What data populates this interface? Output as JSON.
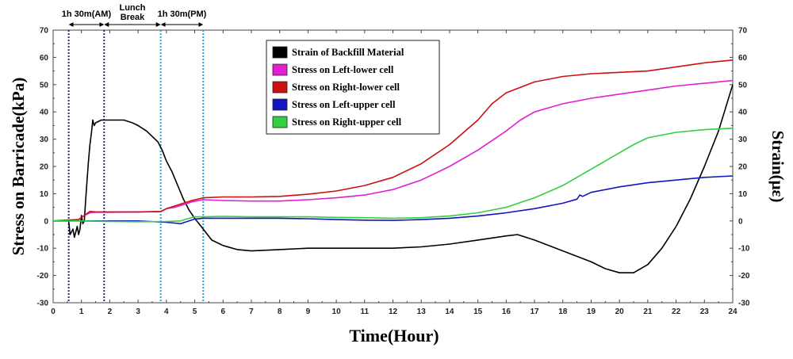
{
  "chart_data": {
    "type": "line",
    "xlabel": "Time(Hour)",
    "ylabel": "Stress on Barricade(kPa)",
    "y2label": "Strain(με)",
    "xlim": [
      0,
      24
    ],
    "ylim": [
      -30,
      70
    ],
    "y2lim": [
      -30,
      70
    ],
    "xticks": [
      0,
      1,
      2,
      3,
      4,
      5,
      6,
      7,
      8,
      9,
      10,
      11,
      12,
      13,
      14,
      15,
      16,
      17,
      18,
      19,
      20,
      21,
      22,
      23,
      24
    ],
    "yticks": [
      -30,
      -20,
      -10,
      0,
      10,
      20,
      30,
      40,
      50,
      60,
      70
    ],
    "y2ticks": [
      -30,
      -20,
      -10,
      0,
      10,
      20,
      30,
      40,
      50,
      60,
      70
    ],
    "grid": false,
    "legend": "top-center",
    "annotations": [
      {
        "label": "1h 30m(AM)",
        "from": 0.55,
        "to": 1.8
      },
      {
        "label_line1": "Lunch",
        "label_line2": "Break",
        "from": 1.8,
        "to": 3.8
      },
      {
        "label": "1h 30m(PM)",
        "from": 3.8,
        "to": 5.3
      }
    ],
    "vlines": [
      {
        "x": 0.55,
        "color": "#1f2f7a"
      },
      {
        "x": 1.8,
        "color": "#1f2f7a"
      },
      {
        "x": 3.8,
        "color": "#2ba3d6"
      },
      {
        "x": 5.3,
        "color": "#2ba3d6"
      }
    ],
    "series": [
      {
        "name": "Strain of Backfill Material",
        "color": "#000000",
        "axis": "right",
        "points": [
          [
            0,
            0
          ],
          [
            0.55,
            0
          ],
          [
            0.6,
            -5
          ],
          [
            0.7,
            -3
          ],
          [
            0.75,
            -6
          ],
          [
            0.8,
            -4
          ],
          [
            0.85,
            -2
          ],
          [
            0.9,
            -5
          ],
          [
            0.95,
            -3
          ],
          [
            1.0,
            2
          ],
          [
            1.05,
            -1
          ],
          [
            1.1,
            0
          ],
          [
            1.15,
            8
          ],
          [
            1.2,
            15
          ],
          [
            1.25,
            22
          ],
          [
            1.3,
            28
          ],
          [
            1.35,
            32
          ],
          [
            1.4,
            37
          ],
          [
            1.45,
            35
          ],
          [
            1.5,
            36
          ],
          [
            1.7,
            37
          ],
          [
            2.0,
            37
          ],
          [
            2.5,
            37
          ],
          [
            2.8,
            36
          ],
          [
            3.0,
            35
          ],
          [
            3.3,
            33
          ],
          [
            3.5,
            31
          ],
          [
            3.7,
            29
          ],
          [
            3.85,
            26
          ],
          [
            4.0,
            22
          ],
          [
            4.2,
            18
          ],
          [
            4.4,
            13
          ],
          [
            4.6,
            8
          ],
          [
            4.8,
            4
          ],
          [
            5.0,
            1
          ],
          [
            5.3,
            -3
          ],
          [
            5.6,
            -7
          ],
          [
            6.0,
            -9
          ],
          [
            6.5,
            -10.5
          ],
          [
            7.0,
            -11
          ],
          [
            8.0,
            -10.5
          ],
          [
            9.0,
            -10
          ],
          [
            10.0,
            -10
          ],
          [
            11.0,
            -10
          ],
          [
            12.0,
            -10
          ],
          [
            13.0,
            -9.5
          ],
          [
            14.0,
            -8.5
          ],
          [
            15.0,
            -7
          ],
          [
            16.0,
            -5.5
          ],
          [
            16.4,
            -5
          ],
          [
            17.0,
            -7
          ],
          [
            18.0,
            -11
          ],
          [
            19.0,
            -15
          ],
          [
            19.5,
            -17.5
          ],
          [
            20.0,
            -19
          ],
          [
            20.5,
            -19
          ],
          [
            21.0,
            -16
          ],
          [
            21.5,
            -10
          ],
          [
            22.0,
            -2
          ],
          [
            22.5,
            8
          ],
          [
            23.0,
            20
          ],
          [
            23.5,
            33
          ],
          [
            24.0,
            50
          ]
        ]
      },
      {
        "name": "Stress on Left-lower cell",
        "color": "#e020d0",
        "axis": "left",
        "points": [
          [
            0,
            0
          ],
          [
            0.9,
            0.5
          ],
          [
            1.1,
            2
          ],
          [
            1.3,
            3
          ],
          [
            1.5,
            3.2
          ],
          [
            2.0,
            3.2
          ],
          [
            3.0,
            3.3
          ],
          [
            3.8,
            3.4
          ],
          [
            4.0,
            4.5
          ],
          [
            4.3,
            5
          ],
          [
            4.6,
            6
          ],
          [
            4.9,
            7
          ],
          [
            5.3,
            7.8
          ],
          [
            6.0,
            7.5
          ],
          [
            7.0,
            7.3
          ],
          [
            8.0,
            7.3
          ],
          [
            9.0,
            7.8
          ],
          [
            10.0,
            8.5
          ],
          [
            11.0,
            9.5
          ],
          [
            12.0,
            11.5
          ],
          [
            13.0,
            15
          ],
          [
            14.0,
            20
          ],
          [
            15.0,
            26
          ],
          [
            16.0,
            33
          ],
          [
            16.5,
            37
          ],
          [
            17.0,
            40
          ],
          [
            18.0,
            43
          ],
          [
            19.0,
            45
          ],
          [
            20.0,
            46.5
          ],
          [
            21.0,
            48
          ],
          [
            22.0,
            49.5
          ],
          [
            23.0,
            50.5
          ],
          [
            24.0,
            51.5
          ]
        ]
      },
      {
        "name": "Stress on Right-lower cell",
        "color": "#cc1010",
        "axis": "left",
        "points": [
          [
            0,
            0
          ],
          [
            0.9,
            0.5
          ],
          [
            1.1,
            2
          ],
          [
            1.3,
            3.5
          ],
          [
            1.5,
            3.3
          ],
          [
            2.0,
            3.3
          ],
          [
            3.0,
            3.3
          ],
          [
            3.8,
            3.5
          ],
          [
            4.0,
            4.5
          ],
          [
            4.3,
            5.5
          ],
          [
            4.6,
            6.5
          ],
          [
            4.9,
            7.5
          ],
          [
            5.3,
            8.5
          ],
          [
            6.0,
            8.8
          ],
          [
            7.0,
            8.8
          ],
          [
            8.0,
            9
          ],
          [
            9.0,
            9.8
          ],
          [
            10.0,
            11
          ],
          [
            11.0,
            13
          ],
          [
            12.0,
            16
          ],
          [
            13.0,
            21
          ],
          [
            14.0,
            28
          ],
          [
            15.0,
            37
          ],
          [
            15.5,
            43
          ],
          [
            16.0,
            47
          ],
          [
            17.0,
            51
          ],
          [
            18.0,
            53
          ],
          [
            19.0,
            54
          ],
          [
            20.0,
            54.5
          ],
          [
            21.0,
            55
          ],
          [
            22.0,
            56.5
          ],
          [
            23.0,
            58
          ],
          [
            24.0,
            59
          ]
        ]
      },
      {
        "name": "Stress on Left-upper cell",
        "color": "#1515c0",
        "axis": "left",
        "points": [
          [
            0,
            0
          ],
          [
            1.0,
            0
          ],
          [
            2.0,
            0
          ],
          [
            3.0,
            0
          ],
          [
            4.0,
            -0.5
          ],
          [
            4.5,
            -1
          ],
          [
            4.8,
            0
          ],
          [
            5.0,
            0.7
          ],
          [
            5.3,
            1
          ],
          [
            6.0,
            1
          ],
          [
            7.0,
            1
          ],
          [
            8.0,
            1
          ],
          [
            9.0,
            0.8
          ],
          [
            10.0,
            0.5
          ],
          [
            11.0,
            0.3
          ],
          [
            12.0,
            0.2
          ],
          [
            13.0,
            0.5
          ],
          [
            14.0,
            1
          ],
          [
            15.0,
            1.8
          ],
          [
            16.0,
            3
          ],
          [
            17.0,
            4.5
          ],
          [
            18.0,
            6.5
          ],
          [
            18.5,
            8
          ],
          [
            18.6,
            9.5
          ],
          [
            18.7,
            9
          ],
          [
            19.0,
            10.5
          ],
          [
            20.0,
            12.5
          ],
          [
            21.0,
            14
          ],
          [
            22.0,
            15
          ],
          [
            23.0,
            16
          ],
          [
            24.0,
            16.5
          ]
        ]
      },
      {
        "name": "Stress on Right-upper cell",
        "color": "#30d040",
        "axis": "left",
        "points": [
          [
            0,
            0
          ],
          [
            1.0,
            0
          ],
          [
            2.0,
            -0.2
          ],
          [
            3.0,
            -0.3
          ],
          [
            4.0,
            -0.2
          ],
          [
            4.5,
            0
          ],
          [
            4.8,
            1
          ],
          [
            5.0,
            1.5
          ],
          [
            5.3,
            1.5
          ],
          [
            6.0,
            1.7
          ],
          [
            7.0,
            1.5
          ],
          [
            8.0,
            1.5
          ],
          [
            9.0,
            1.5
          ],
          [
            10.0,
            1.3
          ],
          [
            11.0,
            1.2
          ],
          [
            12.0,
            1
          ],
          [
            13.0,
            1.2
          ],
          [
            14.0,
            1.8
          ],
          [
            15.0,
            3
          ],
          [
            16.0,
            5
          ],
          [
            17.0,
            8.5
          ],
          [
            18.0,
            13
          ],
          [
            19.0,
            19
          ],
          [
            20.0,
            25
          ],
          [
            20.5,
            28
          ],
          [
            21.0,
            30.5
          ],
          [
            22.0,
            32.5
          ],
          [
            23.0,
            33.5
          ],
          [
            24.0,
            34
          ]
        ]
      }
    ]
  }
}
